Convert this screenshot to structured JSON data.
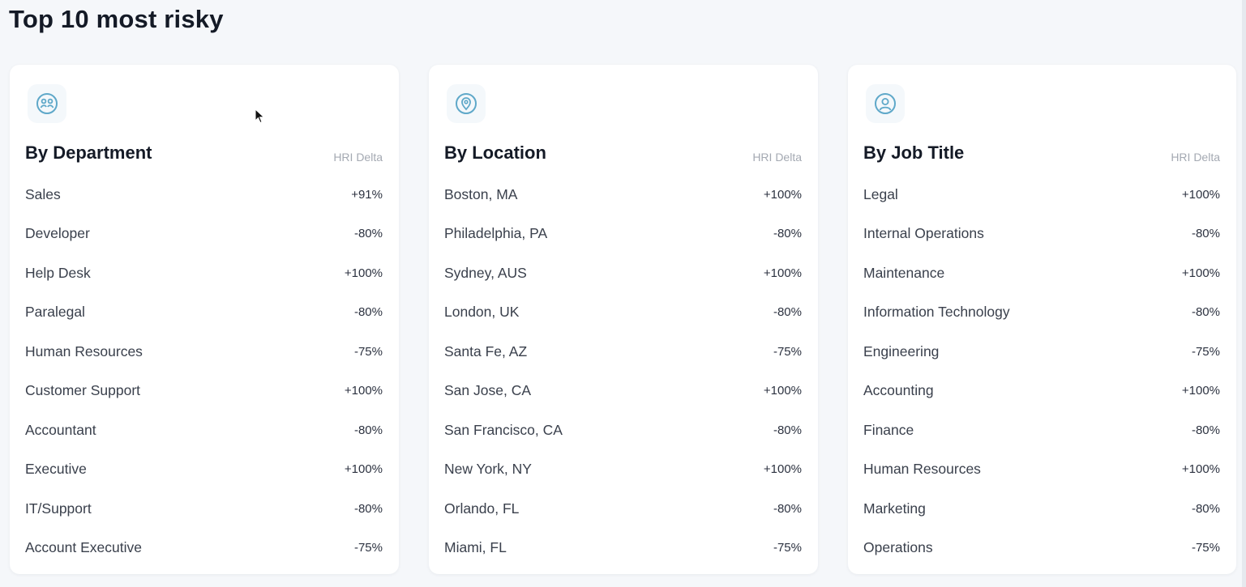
{
  "page": {
    "title": "Top 10 most risky"
  },
  "column_label": "HRI Delta",
  "colors": {
    "accent_icon": "#5fa8c9",
    "icon_bg": "#f4f8fb",
    "card_bg": "#ffffff",
    "page_bg": "#f5f7fa"
  },
  "cards": [
    {
      "title": "By Department",
      "icon": "department-group-icon",
      "rows": [
        {
          "label": "Sales",
          "value": "+91%"
        },
        {
          "label": "Developer",
          "value": "-80%"
        },
        {
          "label": "Help Desk",
          "value": "+100%"
        },
        {
          "label": "Paralegal",
          "value": "-80%"
        },
        {
          "label": "Human Resources",
          "value": "-75%"
        },
        {
          "label": "Customer Support",
          "value": "+100%"
        },
        {
          "label": "Accountant",
          "value": "-80%"
        },
        {
          "label": "Executive",
          "value": "+100%"
        },
        {
          "label": "IT/Support",
          "value": "-80%"
        },
        {
          "label": "Account Executive",
          "value": "-75%"
        }
      ]
    },
    {
      "title": "By Location",
      "icon": "location-pin-icon",
      "rows": [
        {
          "label": "Boston, MA",
          "value": "+100%"
        },
        {
          "label": "Philadelphia, PA",
          "value": "-80%"
        },
        {
          "label": "Sydney, AUS",
          "value": "+100%"
        },
        {
          "label": "London, UK",
          "value": "-80%"
        },
        {
          "label": "Santa Fe, AZ",
          "value": "-75%"
        },
        {
          "label": "San Jose, CA",
          "value": "+100%"
        },
        {
          "label": "San Francisco, CA",
          "value": "-80%"
        },
        {
          "label": "New York, NY",
          "value": "+100%"
        },
        {
          "label": "Orlando, FL",
          "value": "-80%"
        },
        {
          "label": "Miami, FL",
          "value": "-75%"
        }
      ]
    },
    {
      "title": "By Job Title",
      "icon": "user-profile-icon",
      "rows": [
        {
          "label": "Legal",
          "value": "+100%"
        },
        {
          "label": "Internal Operations",
          "value": "-80%"
        },
        {
          "label": "Maintenance",
          "value": "+100%"
        },
        {
          "label": "Information Technology",
          "value": "-80%"
        },
        {
          "label": "Engineering",
          "value": "-75%"
        },
        {
          "label": "Accounting",
          "value": "+100%"
        },
        {
          "label": "Finance",
          "value": "-80%"
        },
        {
          "label": "Human Resources",
          "value": "+100%"
        },
        {
          "label": "Marketing",
          "value": "-80%"
        },
        {
          "label": "Operations",
          "value": "-75%"
        }
      ]
    }
  ]
}
